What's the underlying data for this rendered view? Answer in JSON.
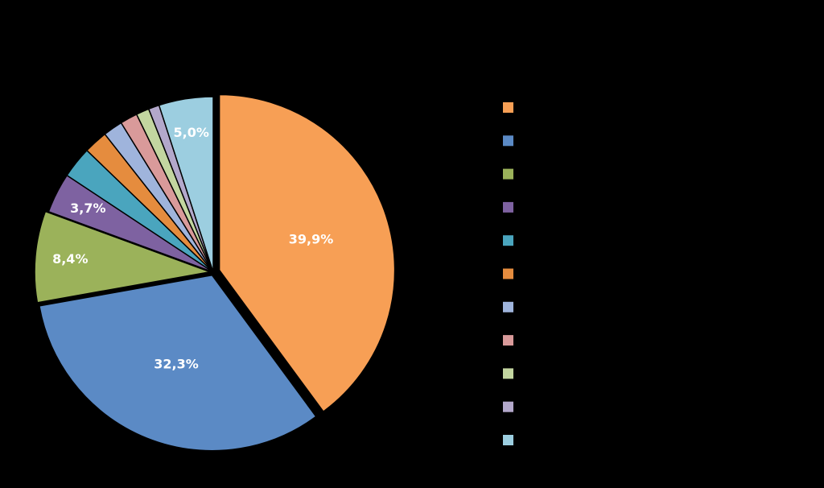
{
  "chart_data": {
    "type": "pie",
    "values": [
      39.9,
      32.3,
      8.4,
      3.7,
      2.9,
      2.2,
      1.8,
      1.6,
      1.2,
      1.0,
      5.0
    ],
    "value_labels": [
      "39,9%",
      "32,3%",
      "8,4%",
      "3,7%",
      null,
      null,
      null,
      null,
      null,
      null,
      "5,0%"
    ],
    "colors": [
      "#f79f55",
      "#5b8ac5",
      "#9bb25a",
      "#7e62a1",
      "#4aa5be",
      "#e58c3e",
      "#9fb4dc",
      "#d99a9a",
      "#c3d6a0",
      "#b3a8cb",
      "#9ccee0"
    ],
    "legend": "right"
  }
}
